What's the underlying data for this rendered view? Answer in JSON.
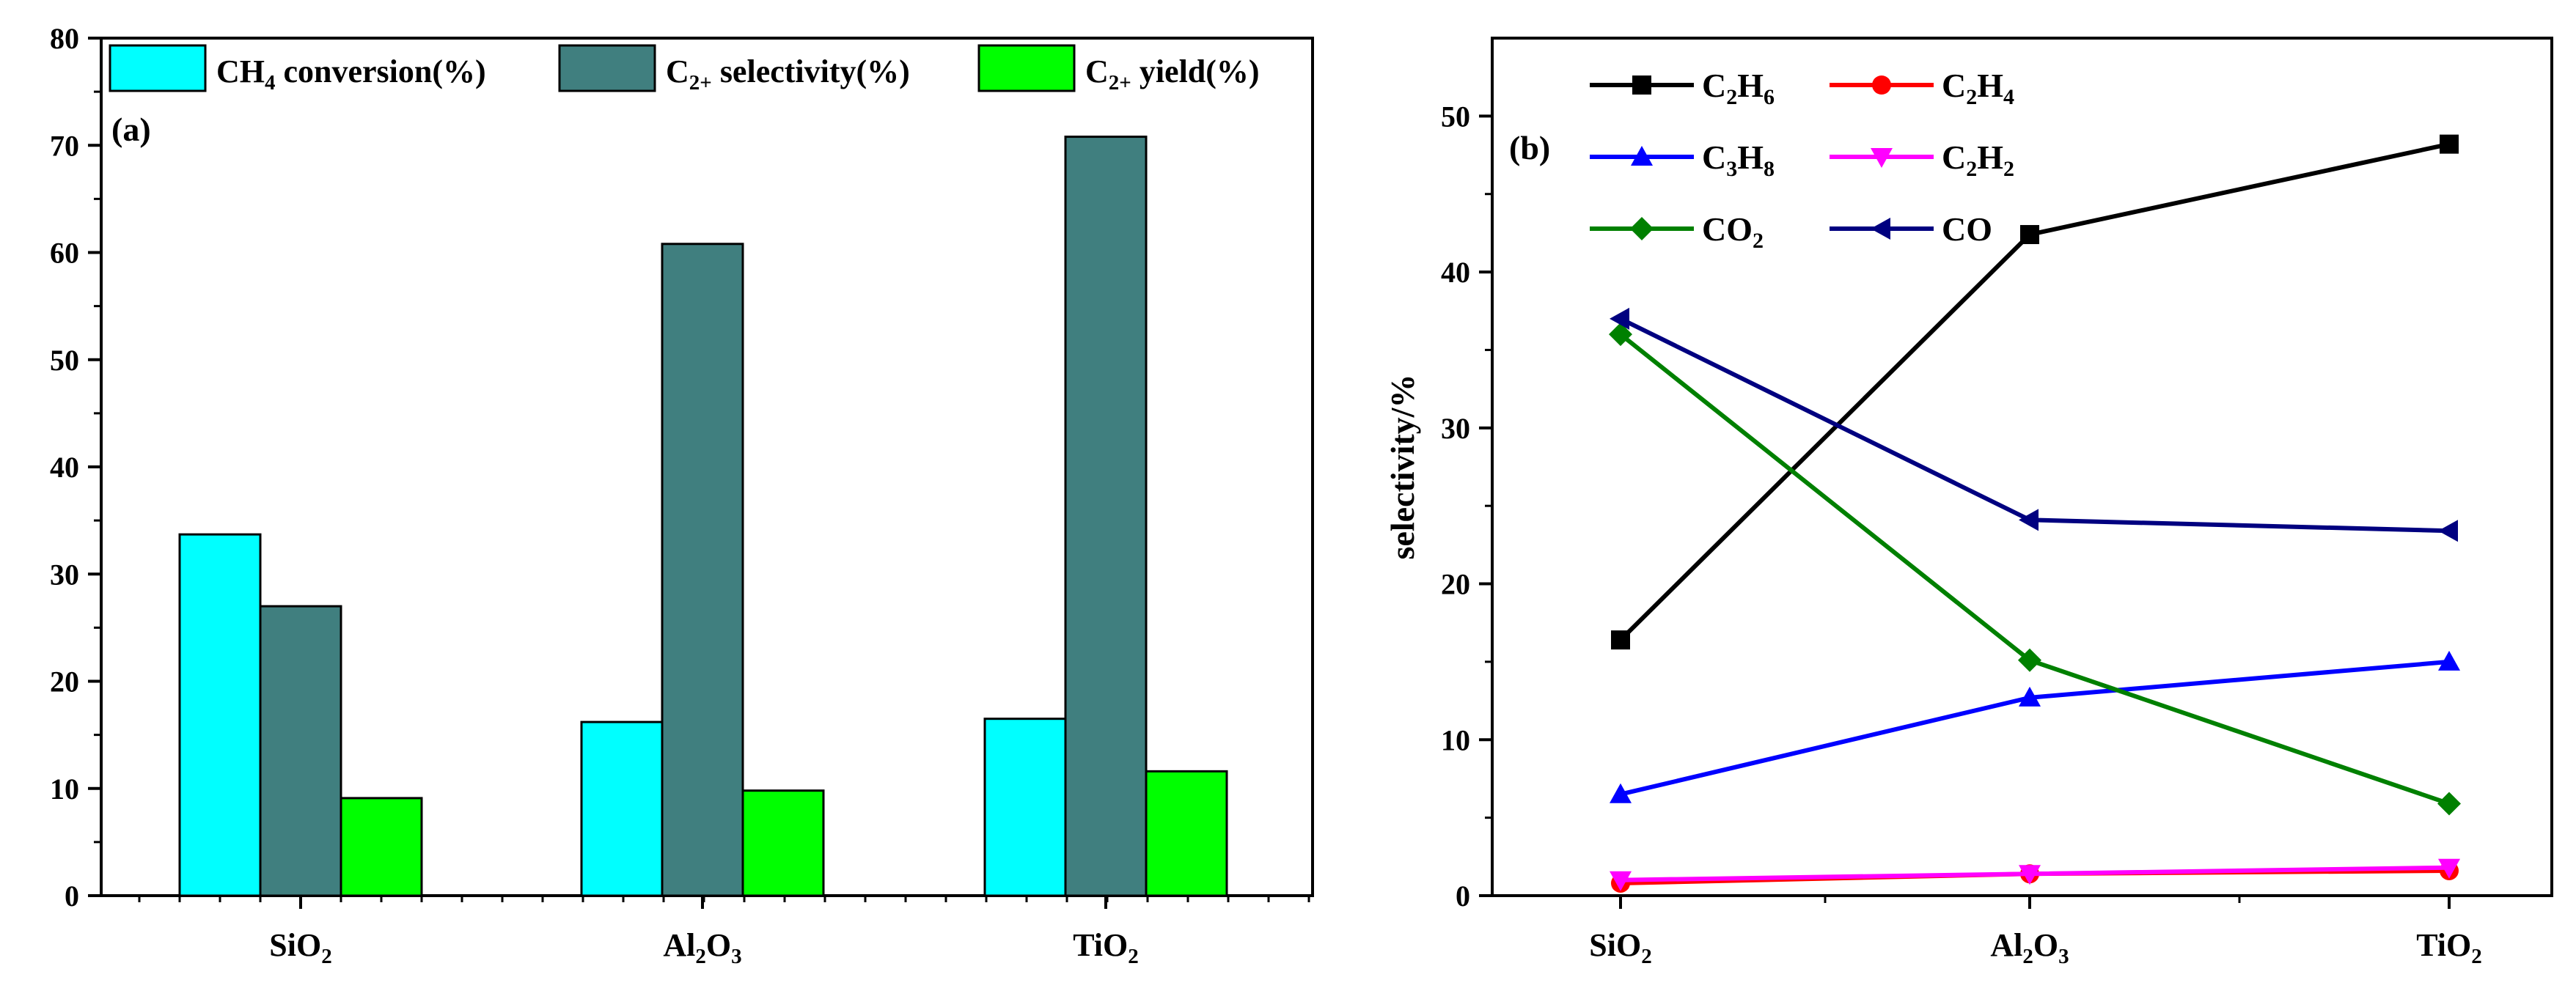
{
  "colors": {
    "axis": "#000000",
    "bar_conversion": "#00FFFF",
    "bar_selectivity": "#407F7F",
    "bar_yield": "#00FF00",
    "C2H6": "#000000",
    "C2H4": "#FF0000",
    "C3H8": "#0000FF",
    "C2H2": "#FF00FF",
    "CO2": "#008000",
    "CO": "#000080"
  },
  "chart_data": [
    {
      "type": "bar",
      "panel_label": "(a)",
      "categories": [
        {
          "base": "SiO",
          "sub": "2",
          "rest": ""
        },
        {
          "base": "Al",
          "sub": "2",
          "rest": "O",
          "sub2": "3"
        },
        {
          "base": "TiO",
          "sub": "2",
          "rest": ""
        }
      ],
      "series": [
        {
          "key": "conversion",
          "legend": {
            "base": "CH",
            "sub": "4",
            "rest": " conversion(%)"
          },
          "values": [
            33.7,
            16.2,
            16.5
          ]
        },
        {
          "key": "selectivity",
          "legend": {
            "base": "C",
            "sub": "2+",
            "rest": " selectivity(%)"
          },
          "values": [
            27.0,
            60.8,
            70.8
          ]
        },
        {
          "key": "yield",
          "legend": {
            "base": "C",
            "sub": "2+",
            "rest": " yield(%)"
          },
          "values": [
            9.1,
            9.8,
            11.6
          ]
        }
      ],
      "xlabel": "",
      "ylabel": "",
      "ylim": [
        0,
        80
      ],
      "yticks": [
        0,
        10,
        20,
        30,
        40,
        50,
        60,
        70,
        80
      ],
      "legend_position": "top",
      "grid": false
    },
    {
      "type": "line",
      "panel_label": "(b)",
      "categories": [
        {
          "base": "SiO",
          "sub": "2",
          "rest": ""
        },
        {
          "base": "Al",
          "sub": "2",
          "rest": "O",
          "sub2": "3"
        },
        {
          "base": "TiO",
          "sub": "2",
          "rest": ""
        }
      ],
      "series": [
        {
          "key": "C2H6",
          "legend": {
            "base": "C",
            "sub": "2",
            "rest": "H",
            "sub2": "6"
          },
          "marker": "square",
          "values": [
            16.4,
            42.4,
            48.2
          ]
        },
        {
          "key": "C2H4",
          "legend": {
            "base": "C",
            "sub": "2",
            "rest": "H",
            "sub2": "4"
          },
          "marker": "circle",
          "values": [
            0.8,
            1.4,
            1.6
          ]
        },
        {
          "key": "C3H8",
          "legend": {
            "base": "C",
            "sub": "3",
            "rest": "H",
            "sub2": "8"
          },
          "marker": "triangle-up",
          "values": [
            6.5,
            12.7,
            15.0
          ]
        },
        {
          "key": "C2H2",
          "legend": {
            "base": "C",
            "sub": "2",
            "rest": "H",
            "sub2": "2"
          },
          "marker": "triangle-down",
          "values": [
            1.0,
            1.4,
            1.8
          ]
        },
        {
          "key": "CO2",
          "legend": {
            "base": "CO",
            "sub": "2",
            "rest": ""
          },
          "marker": "diamond",
          "values": [
            36.0,
            15.1,
            5.9
          ]
        },
        {
          "key": "CO",
          "legend": {
            "base": "CO",
            "sub": "",
            "rest": ""
          },
          "marker": "triangle-left",
          "values": [
            37.0,
            24.1,
            23.4
          ]
        }
      ],
      "xlabel": "",
      "ylabel": "selectivity/%",
      "ylim": [
        0,
        55
      ],
      "yticks": [
        0,
        10,
        20,
        30,
        40,
        50
      ],
      "legend_position": "top-left",
      "grid": false
    }
  ]
}
